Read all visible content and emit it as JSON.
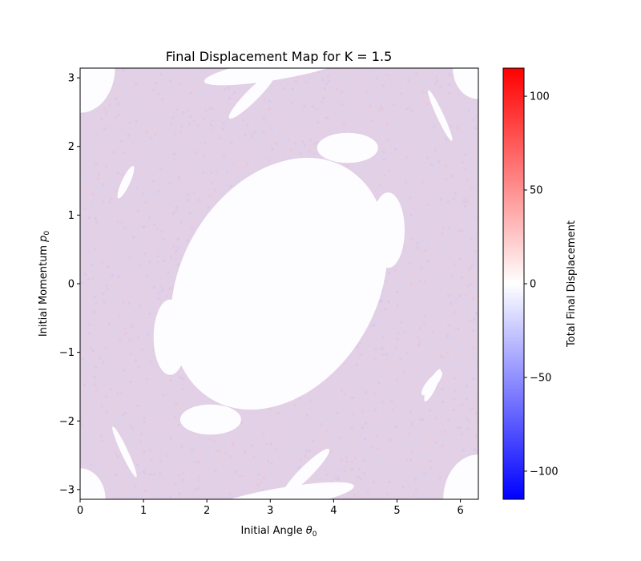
{
  "chart_data": {
    "type": "heatmap",
    "title": "Final Displacement Map for K = 1.5",
    "xlabel_text": "Initial Angle ",
    "xlabel_symbol": "θ",
    "xlabel_sub": "0",
    "ylabel_text": "Initial Momentum ",
    "ylabel_symbol": "p",
    "ylabel_sub": "0",
    "colorbar_label": "Total Final Displacement",
    "xlim": [
      0,
      6.2832
    ],
    "ylim": [
      -3.1416,
      3.1416
    ],
    "x_ticks": [
      0,
      1,
      2,
      3,
      4,
      5,
      6
    ],
    "y_ticks": [
      -3,
      -2,
      -1,
      0,
      1,
      2,
      3
    ],
    "colorbar_range": [
      -115,
      115
    ],
    "colorbar_ticks": [
      -100,
      -50,
      0,
      50,
      100
    ],
    "colormap": [
      "#0000ff",
      "#ffffff",
      "#ff0000"
    ],
    "noise_colors": [
      "#e8cfe0",
      "#dcd0ea",
      "#eccdd8",
      "#d6d3ee",
      "#e4c8d8",
      "#d8c8e8"
    ],
    "regular_islands": [
      {
        "name": "central-island",
        "cx": 3.14,
        "cy": 0.0,
        "rx": 1.55,
        "ry": 1.95,
        "rotate_deg": 30
      },
      {
        "name": "left-lobe",
        "cx": 1.42,
        "cy": -0.78,
        "rx": 0.26,
        "ry": 0.55,
        "rotate_deg": 0
      },
      {
        "name": "right-lobe",
        "cx": 4.86,
        "cy": 0.78,
        "rx": 0.26,
        "ry": 0.55,
        "rotate_deg": 0
      },
      {
        "name": "upper-lobe",
        "cx": 4.22,
        "cy": 1.98,
        "rx": 0.48,
        "ry": 0.22,
        "rotate_deg": 0
      },
      {
        "name": "lower-lobe",
        "cx": 2.06,
        "cy": -1.98,
        "rx": 0.48,
        "ry": 0.22,
        "rotate_deg": 0
      },
      {
        "name": "top-slit",
        "cx": 2.72,
        "cy": 2.75,
        "rx": 0.52,
        "ry": 0.09,
        "rotate_deg": -45
      },
      {
        "name": "bottom-slit",
        "cx": 3.56,
        "cy": -2.75,
        "rx": 0.52,
        "ry": 0.09,
        "rotate_deg": -45
      },
      {
        "name": "left-slit",
        "cx": 0.72,
        "cy": 1.48,
        "rx": 0.28,
        "ry": 0.06,
        "rotate_deg": -65
      },
      {
        "name": "right-slit",
        "cx": 5.56,
        "cy": -1.48,
        "rx": 0.28,
        "ry": 0.06,
        "rotate_deg": -65
      },
      {
        "name": "upper-right-slit",
        "cx": 5.68,
        "cy": 2.45,
        "rx": 0.44,
        "ry": 0.05,
        "rotate_deg": 65
      },
      {
        "name": "lower-left-slit",
        "cx": 0.7,
        "cy": -2.45,
        "rx": 0.44,
        "ry": 0.05,
        "rotate_deg": 65
      },
      {
        "name": "lower-right-slit",
        "cx": 5.55,
        "cy": -1.45,
        "rx": 0.24,
        "ry": 0.07,
        "rotate_deg": -50
      },
      {
        "name": "corner-top-left",
        "cx": 0.0,
        "cy": 3.14,
        "rx": 0.55,
        "ry": 0.65,
        "rotate_deg": 0
      },
      {
        "name": "corner-top-right",
        "cx": 6.28,
        "cy": 3.14,
        "rx": 0.4,
        "ry": 0.45,
        "rotate_deg": 0
      },
      {
        "name": "corner-bottom-left",
        "cx": 0.0,
        "cy": -3.14,
        "rx": 0.4,
        "ry": 0.45,
        "rotate_deg": 0
      },
      {
        "name": "corner-bottom-right",
        "cx": 6.28,
        "cy": -3.14,
        "rx": 0.55,
        "ry": 0.65,
        "rotate_deg": 0
      },
      {
        "name": "edge-top-band",
        "cx": 3.14,
        "cy": 3.14,
        "rx": 1.2,
        "ry": 0.16,
        "rotate_deg": -10
      },
      {
        "name": "edge-bottom-band",
        "cx": 3.14,
        "cy": -3.14,
        "rx": 1.2,
        "ry": 0.16,
        "rotate_deg": -10
      }
    ]
  }
}
